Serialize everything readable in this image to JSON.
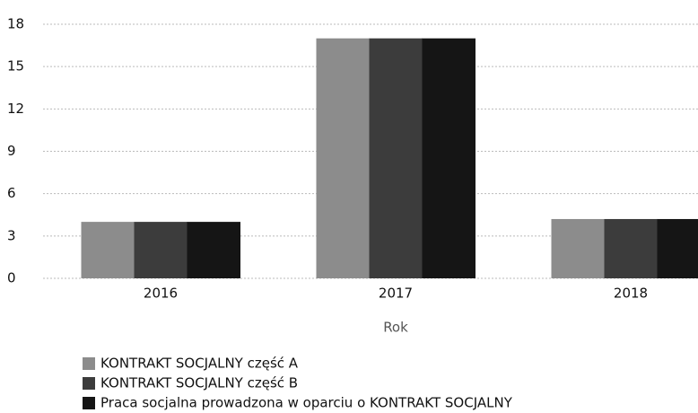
{
  "chart_data": {
    "type": "bar",
    "x_label": "Rok",
    "categories": [
      "2016",
      "2017",
      "2018"
    ],
    "series": [
      {
        "name": "KONTRAKT SOCJALNY część A",
        "color": "#8c8c8c",
        "values": [
          4,
          17,
          4.2
        ]
      },
      {
        "name": "KONTRAKT SOCJALNY część B",
        "color": "#3c3c3c",
        "values": [
          4,
          17,
          4.2
        ]
      },
      {
        "name": "Praca socjalna prowadzona w oparciu o KONTRAKT SOCJALNY",
        "color": "#151515",
        "values": [
          4,
          17,
          4.2
        ]
      }
    ],
    "ylim": [
      0,
      18
    ],
    "yticks": [
      0,
      3,
      6,
      9,
      12,
      15,
      18
    ],
    "grid": true
  }
}
